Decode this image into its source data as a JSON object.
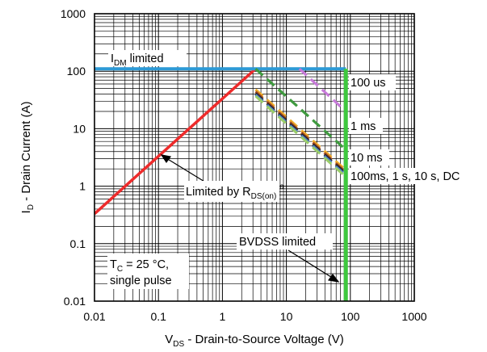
{
  "chart_data": {
    "type": "line",
    "x_scale": "log",
    "y_scale": "log",
    "xlim": [
      0.01,
      1000
    ],
    "ylim": [
      0.01,
      1000
    ],
    "grid": true,
    "x_ticks": [
      "0.01",
      "0.1",
      "1",
      "10",
      "100",
      "1000"
    ],
    "y_ticks": [
      "0.01",
      "0.1",
      "1",
      "10",
      "100",
      "1000"
    ],
    "xlabel": {
      "main": "V",
      "sub": "DS",
      "rest": " - Drain-to-Source Voltage (V)"
    },
    "ylabel": {
      "main": "I",
      "sub": "D",
      "rest": " - Drain Current (A)"
    },
    "series": [
      {
        "name": "Limited by RDS(on)",
        "color": "#ee2b2b",
        "style": "solid",
        "x": [
          0.01,
          3.3
        ],
        "y": [
          0.33,
          110
        ]
      },
      {
        "name": "IDM limited",
        "color": "#2d9ad6",
        "style": "solid",
        "x": [
          0.01,
          85
        ],
        "y": [
          110,
          110
        ]
      },
      {
        "name": "100 us",
        "color": "#c77ad9",
        "style": "dashed",
        "x": [
          16,
          85
        ],
        "y": [
          110,
          20
        ]
      },
      {
        "name": "1 ms",
        "color": "#3f9a3f",
        "style": "dashed",
        "x": [
          3.3,
          85
        ],
        "y": [
          110,
          4.3
        ]
      },
      {
        "name": "10 ms",
        "color": "#f0ad2a",
        "style": "dashed",
        "x": [
          3.3,
          85
        ],
        "y": [
          48,
          1.9
        ]
      },
      {
        "name": "100ms",
        "color": "#a04a24",
        "style": "dashed",
        "x": [
          3.3,
          85
        ],
        "y": [
          44,
          1.75
        ]
      },
      {
        "name": "1 s",
        "color": "#222222",
        "style": "dashed",
        "x": [
          3.3,
          85
        ],
        "y": [
          41,
          1.65
        ]
      },
      {
        "name": "10 s",
        "color": "#4a78c8",
        "style": "dashed",
        "x": [
          3.3,
          85
        ],
        "y": [
          39,
          1.55
        ]
      },
      {
        "name": "DC",
        "color": "#9acd6a",
        "style": "dashed",
        "x": [
          3.3,
          85
        ],
        "y": [
          37,
          1.45
        ]
      },
      {
        "name": "BVDSS limited",
        "color": "#3ec83e",
        "style": "solid",
        "x": [
          85,
          85
        ],
        "y": [
          0.01,
          110
        ]
      }
    ],
    "annotations": {
      "idm": {
        "main": "I",
        "sub": "DM",
        "rest": " limited"
      },
      "rds": {
        "main": "Limited by R",
        "sub": "DS(on)",
        "sup": "a"
      },
      "us100": "100 us",
      "ms1": "1 ms",
      "ms10": "10 ms",
      "dc": "100ms, 1 s, 10 s, DC",
      "bvdss": "BVDSS limited",
      "tc": {
        "main": "T",
        "sub": "C",
        "rest": " = 25 °C,"
      },
      "tc2": "single pulse"
    }
  }
}
